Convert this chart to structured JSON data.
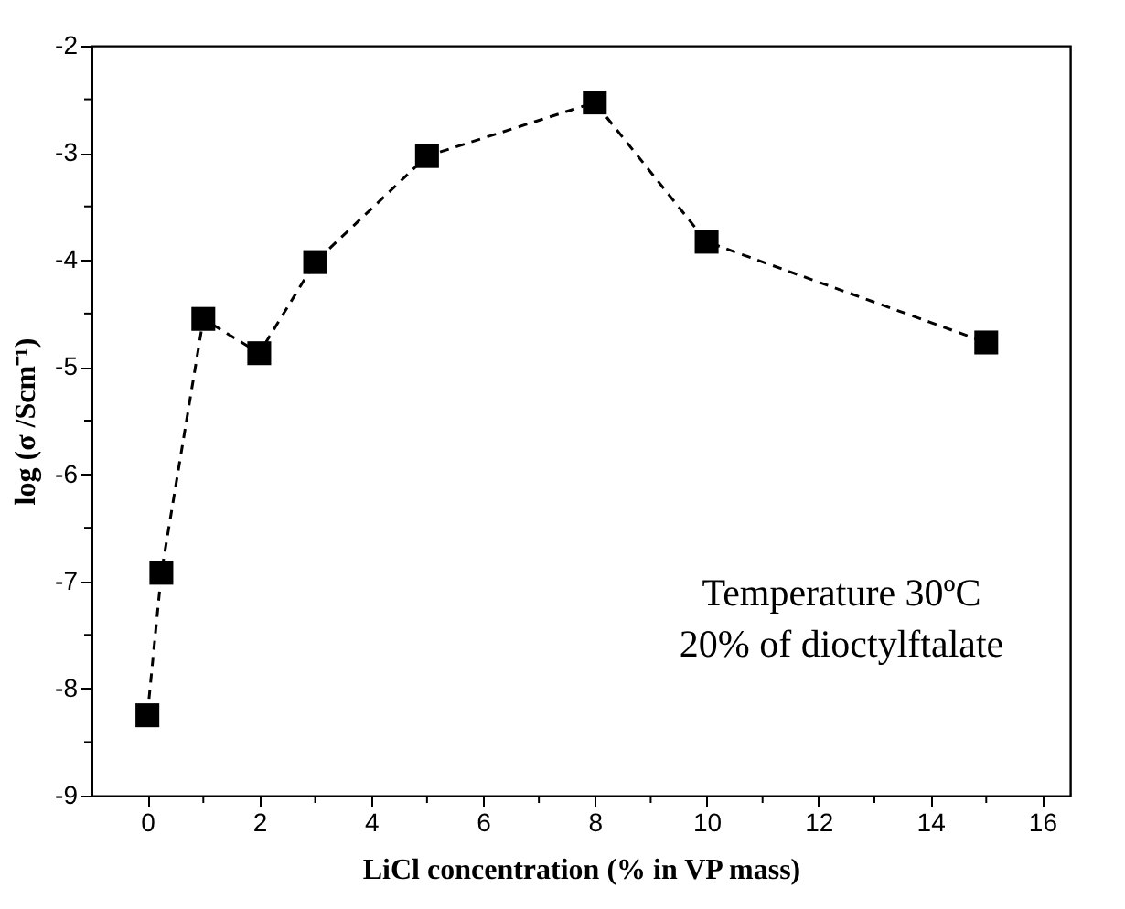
{
  "chart_data": {
    "type": "line",
    "xlabel": "LiCl concentration (% in VP mass)",
    "ylabel": "log (σ /Scm⁻¹)",
    "annotations": [
      "Temperature 30ºC",
      "20% of dioctylftalate"
    ],
    "x": [
      0,
      0.25,
      1,
      2,
      3,
      5,
      8,
      10,
      15
    ],
    "series": [
      {
        "color": "#000000",
        "values": [
          -8.25,
          -6.92,
          -4.55,
          -4.87,
          -4.02,
          -3.03,
          -2.53,
          -3.83,
          -4.77
        ]
      }
    ],
    "marker": "square",
    "line_style": "dashed",
    "grid": false,
    "xlim": [
      -1,
      16.5
    ],
    "xticks": [
      0,
      {
        "value": 1,
        "label": null
      },
      2,
      {
        "value": 3,
        "label": null
      },
      4,
      {
        "value": 5,
        "label": null
      },
      6,
      {
        "value": 7,
        "label": null
      },
      8,
      {
        "value": 9,
        "label": null
      },
      10,
      {
        "value": 11,
        "label": null
      },
      12,
      {
        "value": 13,
        "label": null
      },
      14,
      {
        "value": 15,
        "label": null
      },
      16
    ],
    "ylim": [
      -9,
      -2
    ],
    "yticks": [
      -9,
      {
        "value": -8.5,
        "label": null
      },
      -8,
      {
        "value": -7.5,
        "label": null
      },
      -7,
      {
        "value": -6.5,
        "label": null
      },
      -6,
      {
        "value": -5.5,
        "label": null
      },
      -5,
      {
        "value": -4.5,
        "label": null
      },
      -4,
      {
        "value": -3.5,
        "label": null
      },
      -3,
      {
        "value": -2.5,
        "label": null
      },
      -2
    ]
  }
}
